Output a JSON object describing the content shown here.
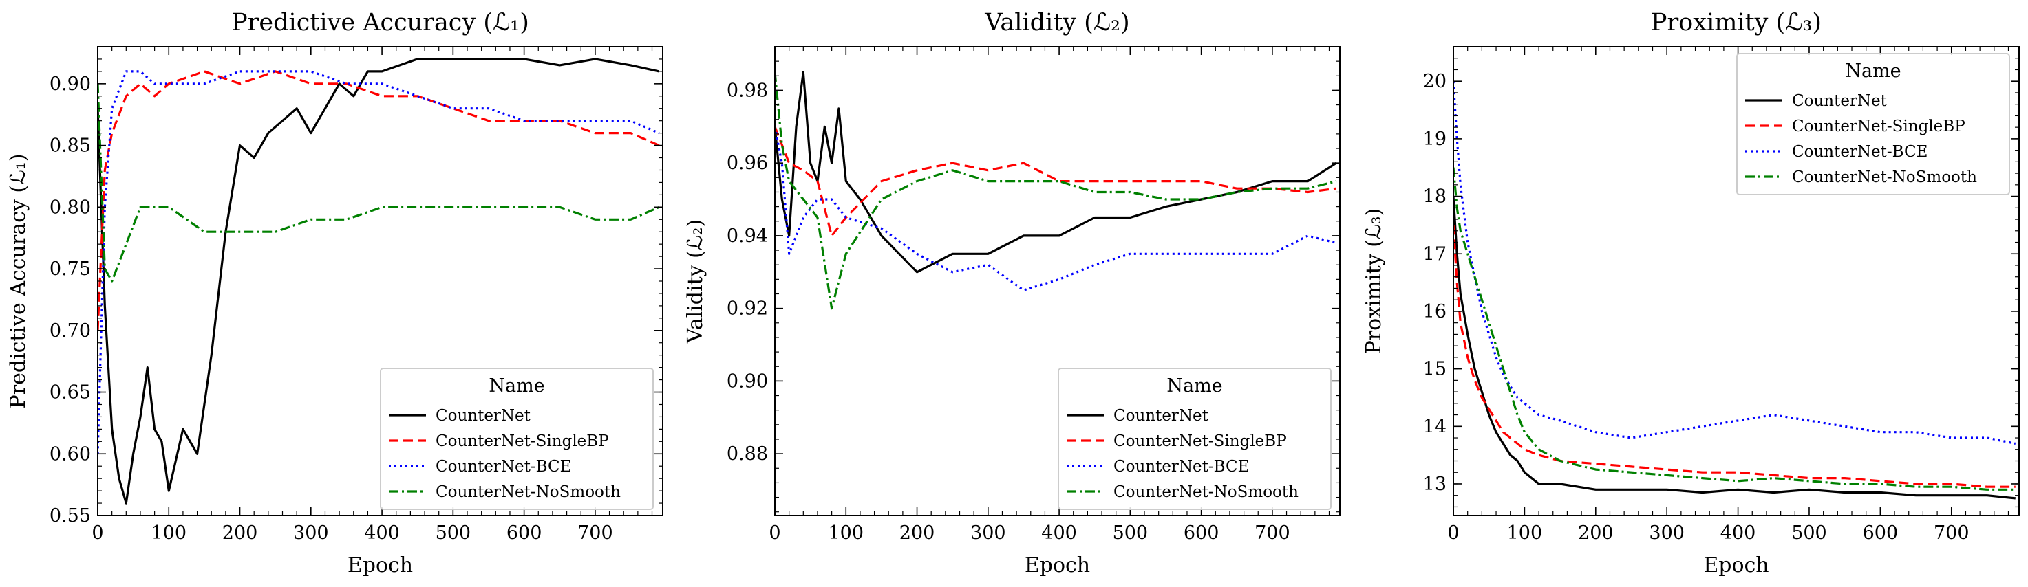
{
  "chart_data": [
    {
      "type": "line",
      "title": "Predictive Accuracy (ℒ₁)",
      "xlabel": "Epoch",
      "ylabel": "Predictive Accuracy (ℒ₁)",
      "xlim": [
        0,
        795
      ],
      "ylim": [
        0.55,
        0.93
      ],
      "xticks": [
        0,
        100,
        200,
        300,
        400,
        500,
        600,
        700
      ],
      "yticks": [
        0.55,
        0.6,
        0.65,
        0.7,
        0.75,
        0.8,
        0.85,
        0.9
      ],
      "ytick_labels": [
        "0.55",
        "0.60",
        "0.65",
        "0.70",
        "0.75",
        "0.80",
        "0.85",
        "0.90"
      ],
      "legend_title": "Name",
      "legend_position": "lower right",
      "series": [
        {
          "name": "CounterNet",
          "color": "#000000",
          "dash": "solid",
          "x": [
            0,
            10,
            20,
            30,
            40,
            50,
            60,
            70,
            80,
            90,
            100,
            120,
            140,
            160,
            180,
            200,
            220,
            240,
            260,
            280,
            300,
            320,
            340,
            360,
            380,
            400,
            450,
            500,
            550,
            600,
            650,
            700,
            750,
            790
          ],
          "y": [
            0.88,
            0.72,
            0.62,
            0.58,
            0.56,
            0.6,
            0.63,
            0.67,
            0.62,
            0.61,
            0.57,
            0.62,
            0.6,
            0.68,
            0.78,
            0.85,
            0.84,
            0.86,
            0.87,
            0.88,
            0.86,
            0.88,
            0.9,
            0.89,
            0.91,
            0.91,
            0.92,
            0.92,
            0.92,
            0.92,
            0.915,
            0.92,
            0.915,
            0.91
          ]
        },
        {
          "name": "CounterNet-SingleBP",
          "color": "#ff0000",
          "dash": "dashed",
          "x": [
            0,
            10,
            20,
            40,
            60,
            80,
            100,
            150,
            200,
            250,
            300,
            350,
            400,
            450,
            500,
            550,
            600,
            650,
            700,
            750,
            790
          ],
          "y": [
            0.7,
            0.83,
            0.86,
            0.89,
            0.9,
            0.89,
            0.9,
            0.91,
            0.9,
            0.91,
            0.9,
            0.9,
            0.89,
            0.89,
            0.88,
            0.87,
            0.87,
            0.87,
            0.86,
            0.86,
            0.85
          ]
        },
        {
          "name": "CounterNet-BCE",
          "color": "#0000ff",
          "dash": "dotted",
          "x": [
            0,
            10,
            20,
            40,
            60,
            80,
            100,
            150,
            200,
            250,
            300,
            350,
            400,
            450,
            500,
            550,
            600,
            650,
            700,
            750,
            790
          ],
          "y": [
            0.6,
            0.8,
            0.88,
            0.91,
            0.91,
            0.9,
            0.9,
            0.9,
            0.91,
            0.91,
            0.91,
            0.9,
            0.9,
            0.89,
            0.88,
            0.88,
            0.87,
            0.87,
            0.87,
            0.87,
            0.86
          ]
        },
        {
          "name": "CounterNet-NoSmooth",
          "color": "#008000",
          "dash": "dashdot",
          "x": [
            0,
            10,
            20,
            40,
            60,
            80,
            100,
            150,
            200,
            250,
            300,
            350,
            400,
            450,
            500,
            550,
            600,
            650,
            700,
            750,
            790
          ],
          "y": [
            0.9,
            0.75,
            0.74,
            0.77,
            0.8,
            0.8,
            0.8,
            0.78,
            0.78,
            0.78,
            0.79,
            0.79,
            0.8,
            0.8,
            0.8,
            0.8,
            0.8,
            0.8,
            0.79,
            0.79,
            0.8
          ]
        }
      ]
    },
    {
      "type": "line",
      "title": "Validity (ℒ₂)",
      "xlabel": "Epoch",
      "ylabel": "Validity (ℒ₂)",
      "xlim": [
        0,
        795
      ],
      "ylim": [
        0.863,
        0.992
      ],
      "xticks": [
        0,
        100,
        200,
        300,
        400,
        500,
        600,
        700
      ],
      "yticks": [
        0.88,
        0.9,
        0.92,
        0.94,
        0.96,
        0.98
      ],
      "ytick_labels": [
        "0.88",
        "0.90",
        "0.92",
        "0.94",
        "0.96",
        "0.98"
      ],
      "legend_title": "Name",
      "legend_position": "lower right",
      "series": [
        {
          "name": "CounterNet",
          "color": "#000000",
          "dash": "solid",
          "x": [
            0,
            10,
            20,
            30,
            40,
            50,
            60,
            70,
            80,
            90,
            100,
            120,
            150,
            200,
            250,
            300,
            350,
            400,
            450,
            500,
            550,
            600,
            650,
            700,
            750,
            790
          ],
          "y": [
            0.97,
            0.95,
            0.94,
            0.97,
            0.985,
            0.96,
            0.955,
            0.97,
            0.96,
            0.975,
            0.955,
            0.95,
            0.94,
            0.93,
            0.935,
            0.935,
            0.94,
            0.94,
            0.945,
            0.945,
            0.948,
            0.95,
            0.952,
            0.955,
            0.955,
            0.96
          ]
        },
        {
          "name": "CounterNet-SingleBP",
          "color": "#ff0000",
          "dash": "dashed",
          "x": [
            0,
            10,
            20,
            40,
            60,
            80,
            100,
            150,
            200,
            250,
            300,
            350,
            400,
            450,
            500,
            550,
            600,
            650,
            700,
            750,
            790
          ],
          "y": [
            0.97,
            0.965,
            0.96,
            0.958,
            0.955,
            0.94,
            0.945,
            0.955,
            0.958,
            0.96,
            0.958,
            0.96,
            0.955,
            0.955,
            0.955,
            0.955,
            0.955,
            0.953,
            0.953,
            0.952,
            0.953
          ]
        },
        {
          "name": "CounterNet-BCE",
          "color": "#0000ff",
          "dash": "dotted",
          "x": [
            0,
            10,
            20,
            40,
            60,
            80,
            100,
            150,
            200,
            250,
            300,
            350,
            400,
            450,
            500,
            550,
            600,
            650,
            700,
            750,
            790
          ],
          "y": [
            0.97,
            0.96,
            0.935,
            0.945,
            0.95,
            0.95,
            0.945,
            0.942,
            0.935,
            0.93,
            0.932,
            0.925,
            0.928,
            0.932,
            0.935,
            0.935,
            0.935,
            0.935,
            0.935,
            0.94,
            0.938
          ]
        },
        {
          "name": "CounterNet-NoSmooth",
          "color": "#008000",
          "dash": "dashdot",
          "x": [
            0,
            10,
            20,
            40,
            60,
            80,
            100,
            150,
            200,
            250,
            300,
            350,
            400,
            450,
            500,
            550,
            600,
            650,
            700,
            750,
            790
          ],
          "y": [
            0.985,
            0.965,
            0.955,
            0.95,
            0.945,
            0.92,
            0.935,
            0.95,
            0.955,
            0.958,
            0.955,
            0.955,
            0.955,
            0.952,
            0.952,
            0.95,
            0.95,
            0.952,
            0.953,
            0.953,
            0.955
          ]
        }
      ]
    },
    {
      "type": "line",
      "title": "Proximity (ℒ₃)",
      "xlabel": "Epoch",
      "ylabel": "Proximity (ℒ₃)",
      "xlim": [
        0,
        795
      ],
      "ylim": [
        12.45,
        20.6
      ],
      "xticks": [
        0,
        100,
        200,
        300,
        400,
        500,
        600,
        700
      ],
      "yticks": [
        13,
        14,
        15,
        16,
        17,
        18,
        19,
        20
      ],
      "ytick_labels": [
        "13",
        "14",
        "15",
        "16",
        "17",
        "18",
        "19",
        "20"
      ],
      "legend_title": "Name",
      "legend_position": "upper right",
      "series": [
        {
          "name": "CounterNet",
          "color": "#000000",
          "dash": "solid",
          "x": [
            0,
            5,
            10,
            20,
            30,
            40,
            50,
            60,
            70,
            80,
            90,
            100,
            120,
            150,
            200,
            250,
            300,
            350,
            400,
            450,
            500,
            550,
            600,
            650,
            700,
            750,
            790
          ],
          "y": [
            18.0,
            17.0,
            16.3,
            15.6,
            15.0,
            14.6,
            14.2,
            13.9,
            13.7,
            13.5,
            13.4,
            13.2,
            13.0,
            13.0,
            12.9,
            12.9,
            12.9,
            12.85,
            12.9,
            12.85,
            12.9,
            12.85,
            12.85,
            12.8,
            12.8,
            12.8,
            12.75
          ]
        },
        {
          "name": "CounterNet-SingleBP",
          "color": "#ff0000",
          "dash": "dashed",
          "x": [
            0,
            5,
            10,
            20,
            30,
            40,
            50,
            60,
            70,
            80,
            90,
            100,
            120,
            150,
            200,
            250,
            300,
            350,
            400,
            450,
            500,
            550,
            600,
            650,
            700,
            750,
            790
          ],
          "y": [
            17.5,
            16.5,
            15.8,
            15.2,
            14.8,
            14.5,
            14.3,
            14.1,
            13.9,
            13.8,
            13.7,
            13.6,
            13.5,
            13.4,
            13.35,
            13.3,
            13.25,
            13.2,
            13.2,
            13.15,
            13.1,
            13.1,
            13.05,
            13.0,
            13.0,
            12.95,
            12.95
          ]
        },
        {
          "name": "CounterNet-BCE",
          "color": "#0000ff",
          "dash": "dotted",
          "x": [
            0,
            5,
            10,
            20,
            30,
            40,
            50,
            60,
            70,
            80,
            90,
            100,
            120,
            150,
            200,
            250,
            300,
            350,
            400,
            450,
            500,
            550,
            600,
            650,
            700,
            750,
            790
          ],
          "y": [
            20.0,
            19.0,
            18.2,
            17.2,
            16.6,
            16.0,
            15.6,
            15.2,
            14.9,
            14.7,
            14.5,
            14.4,
            14.2,
            14.1,
            13.9,
            13.8,
            13.9,
            14.0,
            14.1,
            14.2,
            14.1,
            14.0,
            13.9,
            13.9,
            13.8,
            13.8,
            13.7
          ]
        },
        {
          "name": "CounterNet-NoSmooth",
          "color": "#008000",
          "dash": "dashdot",
          "x": [
            0,
            5,
            10,
            20,
            30,
            40,
            50,
            60,
            70,
            80,
            90,
            100,
            120,
            150,
            200,
            250,
            300,
            350,
            400,
            450,
            500,
            550,
            600,
            650,
            700,
            750,
            790
          ],
          "y": [
            18.5,
            17.8,
            17.4,
            17.0,
            16.6,
            16.2,
            15.8,
            15.4,
            15.0,
            14.6,
            14.2,
            13.9,
            13.6,
            13.4,
            13.25,
            13.2,
            13.15,
            13.1,
            13.05,
            13.1,
            13.05,
            13.0,
            13.0,
            12.95,
            12.95,
            12.9,
            12.9
          ]
        }
      ]
    }
  ]
}
